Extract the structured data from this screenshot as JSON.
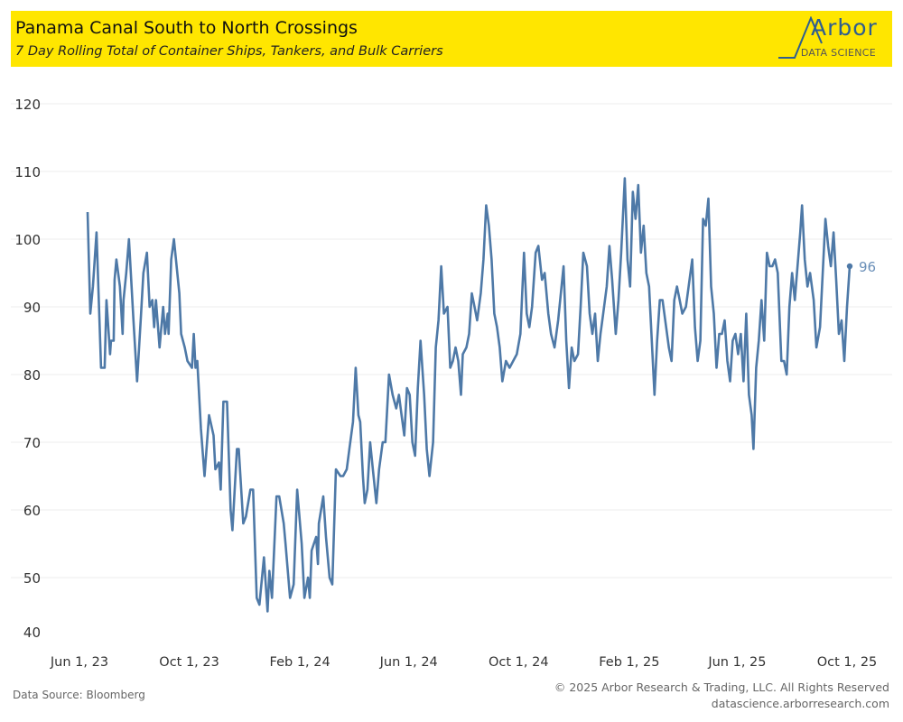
{
  "header": {
    "title": "Panama Canal South to North Crossings",
    "subtitle": "7 Day Rolling Total of Container Ships, Tankers, and Bulk Carriers"
  },
  "logo": {
    "word": "Arbor",
    "sub": "DATA SCIENCE"
  },
  "footer": {
    "source": "Data Source: Bloomberg",
    "copyright": "© 2025 Arbor Research & Trading, LLC. All Rights Reserved",
    "website": "datascience.arborresearch.com"
  },
  "colors": {
    "line": "#4e79a7",
    "header": "#ffe600"
  },
  "chart_data": {
    "type": "line",
    "title": "Panama Canal South to North Crossings",
    "x_unit": "days since Jun 1, 2023",
    "xlim": [
      -9,
      856
    ],
    "ylim": [
      40,
      120
    ],
    "yticks": [
      40,
      50,
      60,
      70,
      80,
      90,
      100,
      110,
      120
    ],
    "xticks": [
      {
        "day": 0,
        "label": "Jun 1, 23"
      },
      {
        "day": 122,
        "label": "Oct 1, 23"
      },
      {
        "day": 245,
        "label": "Feb 1, 24"
      },
      {
        "day": 366,
        "label": "Jun 1, 24"
      },
      {
        "day": 488,
        "label": "Oct 1, 24"
      },
      {
        "day": 611,
        "label": "Feb 1, 25"
      },
      {
        "day": 731,
        "label": "Jun 1, 25"
      },
      {
        "day": 853,
        "label": "Oct 1, 25"
      }
    ],
    "grid": true,
    "end_label": "96",
    "series": [
      {
        "name": "South to North Crossings",
        "points": [
          [
            9,
            104
          ],
          [
            12,
            89
          ],
          [
            15,
            93
          ],
          [
            19,
            101
          ],
          [
            24,
            81
          ],
          [
            28,
            81
          ],
          [
            30,
            91
          ],
          [
            34,
            83
          ],
          [
            35,
            85
          ],
          [
            38,
            85
          ],
          [
            39,
            94
          ],
          [
            41,
            97
          ],
          [
            45,
            93
          ],
          [
            48,
            86
          ],
          [
            49,
            91
          ],
          [
            52,
            95
          ],
          [
            55,
            100
          ],
          [
            60,
            88
          ],
          [
            64,
            79
          ],
          [
            68,
            88
          ],
          [
            71,
            95
          ],
          [
            75,
            98
          ],
          [
            78,
            90
          ],
          [
            81,
            91
          ],
          [
            83,
            87
          ],
          [
            85,
            91
          ],
          [
            89,
            84
          ],
          [
            93,
            90
          ],
          [
            95,
            86
          ],
          [
            98,
            89
          ],
          [
            99,
            86
          ],
          [
            102,
            97
          ],
          [
            105,
            100
          ],
          [
            111,
            92
          ],
          [
            113,
            86
          ],
          [
            117,
            84
          ],
          [
            120,
            82
          ],
          [
            125,
            81
          ],
          [
            127,
            86
          ],
          [
            129,
            81
          ],
          [
            131,
            82
          ],
          [
            135,
            72
          ],
          [
            139,
            65
          ],
          [
            144,
            74
          ],
          [
            149,
            71
          ],
          [
            151,
            66
          ],
          [
            155,
            67
          ],
          [
            157,
            63
          ],
          [
            160,
            76
          ],
          [
            164,
            76
          ],
          [
            168,
            60
          ],
          [
            170,
            57
          ],
          [
            175,
            69
          ],
          [
            177,
            69
          ],
          [
            182,
            58
          ],
          [
            185,
            59
          ],
          [
            190,
            63
          ],
          [
            193,
            63
          ],
          [
            197,
            47
          ],
          [
            200,
            46
          ],
          [
            205,
            53
          ],
          [
            209,
            45
          ],
          [
            211,
            51
          ],
          [
            214,
            47
          ],
          [
            219,
            62
          ],
          [
            222,
            62
          ],
          [
            227,
            58
          ],
          [
            229,
            55
          ],
          [
            234,
            47
          ],
          [
            238,
            49
          ],
          [
            242,
            63
          ],
          [
            247,
            55
          ],
          [
            250,
            47
          ],
          [
            254,
            50
          ],
          [
            256,
            47
          ],
          [
            258,
            54
          ],
          [
            263,
            56
          ],
          [
            265,
            52
          ],
          [
            266,
            58
          ],
          [
            271,
            62
          ],
          [
            274,
            56
          ],
          [
            278,
            50
          ],
          [
            281,
            49
          ],
          [
            285,
            66
          ],
          [
            290,
            65
          ],
          [
            293,
            65
          ],
          [
            297,
            66
          ],
          [
            300,
            69
          ],
          [
            304,
            73
          ],
          [
            307,
            81
          ],
          [
            310,
            74
          ],
          [
            312,
            73
          ],
          [
            315,
            65
          ],
          [
            317,
            61
          ],
          [
            320,
            63
          ],
          [
            323,
            70
          ],
          [
            326,
            66
          ],
          [
            330,
            61
          ],
          [
            333,
            66
          ],
          [
            337,
            70
          ],
          [
            340,
            70
          ],
          [
            344,
            80
          ],
          [
            348,
            77
          ],
          [
            352,
            75
          ],
          [
            355,
            77
          ],
          [
            358,
            74
          ],
          [
            361,
            71
          ],
          [
            364,
            78
          ],
          [
            367,
            77
          ],
          [
            370,
            70
          ],
          [
            373,
            68
          ],
          [
            376,
            78
          ],
          [
            379,
            85
          ],
          [
            383,
            77
          ],
          [
            386,
            69
          ],
          [
            389,
            65
          ],
          [
            393,
            70
          ],
          [
            396,
            84
          ],
          [
            399,
            88
          ],
          [
            402,
            96
          ],
          [
            405,
            89
          ],
          [
            409,
            90
          ],
          [
            412,
            81
          ],
          [
            415,
            82
          ],
          [
            418,
            84
          ],
          [
            421,
            82
          ],
          [
            424,
            77
          ],
          [
            426,
            83
          ],
          [
            430,
            84
          ],
          [
            433,
            86
          ],
          [
            436,
            92
          ],
          [
            439,
            90
          ],
          [
            442,
            88
          ],
          [
            446,
            92
          ],
          [
            449,
            97
          ],
          [
            452,
            105
          ],
          [
            455,
            102
          ],
          [
            458,
            97
          ],
          [
            461,
            89
          ],
          [
            464,
            87
          ],
          [
            467,
            84
          ],
          [
            470,
            79
          ],
          [
            474,
            82
          ],
          [
            478,
            81
          ],
          [
            482,
            82
          ],
          [
            486,
            83
          ],
          [
            490,
            86
          ],
          [
            494,
            98
          ],
          [
            497,
            89
          ],
          [
            500,
            87
          ],
          [
            503,
            90
          ],
          [
            507,
            98
          ],
          [
            510,
            99
          ],
          [
            514,
            94
          ],
          [
            517,
            95
          ],
          [
            521,
            89
          ],
          [
            524,
            86
          ],
          [
            528,
            84
          ],
          [
            532,
            88
          ],
          [
            535,
            92
          ],
          [
            538,
            96
          ],
          [
            541,
            85
          ],
          [
            544,
            78
          ],
          [
            547,
            84
          ],
          [
            550,
            82
          ],
          [
            554,
            83
          ],
          [
            557,
            90
          ],
          [
            560,
            98
          ],
          [
            564,
            96
          ],
          [
            567,
            89
          ],
          [
            570,
            86
          ],
          [
            573,
            89
          ],
          [
            576,
            82
          ],
          [
            579,
            86
          ],
          [
            582,
            89
          ],
          [
            586,
            93
          ],
          [
            589,
            99
          ],
          [
            592,
            94
          ],
          [
            596,
            86
          ],
          [
            599,
            91
          ],
          [
            602,
            98
          ],
          [
            606,
            109
          ],
          [
            609,
            97
          ],
          [
            612,
            93
          ],
          [
            615,
            107
          ],
          [
            618,
            103
          ],
          [
            621,
            108
          ],
          [
            624,
            98
          ],
          [
            627,
            102
          ],
          [
            630,
            95
          ],
          [
            633,
            93
          ],
          [
            636,
            85
          ],
          [
            639,
            77
          ],
          [
            642,
            85
          ],
          [
            645,
            91
          ],
          [
            648,
            91
          ],
          [
            652,
            87
          ],
          [
            655,
            84
          ],
          [
            658,
            82
          ],
          [
            661,
            91
          ],
          [
            664,
            93
          ],
          [
            667,
            91
          ],
          [
            670,
            89
          ],
          [
            674,
            90
          ],
          [
            677,
            93
          ],
          [
            681,
            97
          ],
          [
            684,
            87
          ],
          [
            687,
            82
          ],
          [
            690,
            85
          ],
          [
            693,
            103
          ],
          [
            696,
            102
          ],
          [
            699,
            106
          ],
          [
            702,
            93
          ],
          [
            705,
            89
          ],
          [
            708,
            81
          ],
          [
            711,
            86
          ],
          [
            714,
            86
          ],
          [
            717,
            88
          ],
          [
            720,
            82
          ],
          [
            723,
            79
          ],
          [
            726,
            85
          ],
          [
            729,
            86
          ],
          [
            732,
            83
          ],
          [
            735,
            86
          ],
          [
            738,
            79
          ],
          [
            741,
            89
          ],
          [
            744,
            77
          ],
          [
            747,
            74
          ],
          [
            749,
            69
          ],
          [
            752,
            81
          ],
          [
            755,
            85
          ],
          [
            758,
            91
          ],
          [
            761,
            85
          ],
          [
            764,
            98
          ],
          [
            767,
            96
          ],
          [
            770,
            96
          ],
          [
            773,
            97
          ],
          [
            776,
            95
          ],
          [
            780,
            82
          ],
          [
            783,
            82
          ],
          [
            786,
            80
          ],
          [
            789,
            90
          ],
          [
            792,
            95
          ],
          [
            795,
            91
          ],
          [
            798,
            96
          ],
          [
            801,
            101
          ],
          [
            803,
            105
          ],
          [
            806,
            97
          ],
          [
            809,
            93
          ],
          [
            812,
            95
          ],
          [
            816,
            91
          ],
          [
            819,
            84
          ],
          [
            823,
            87
          ],
          [
            826,
            95
          ],
          [
            829,
            103
          ],
          [
            832,
            99
          ],
          [
            835,
            96
          ],
          [
            838,
            101
          ],
          [
            841,
            94
          ],
          [
            844,
            86
          ],
          [
            847,
            88
          ],
          [
            850,
            82
          ],
          [
            853,
            90
          ],
          [
            856,
            96
          ]
        ]
      }
    ]
  }
}
